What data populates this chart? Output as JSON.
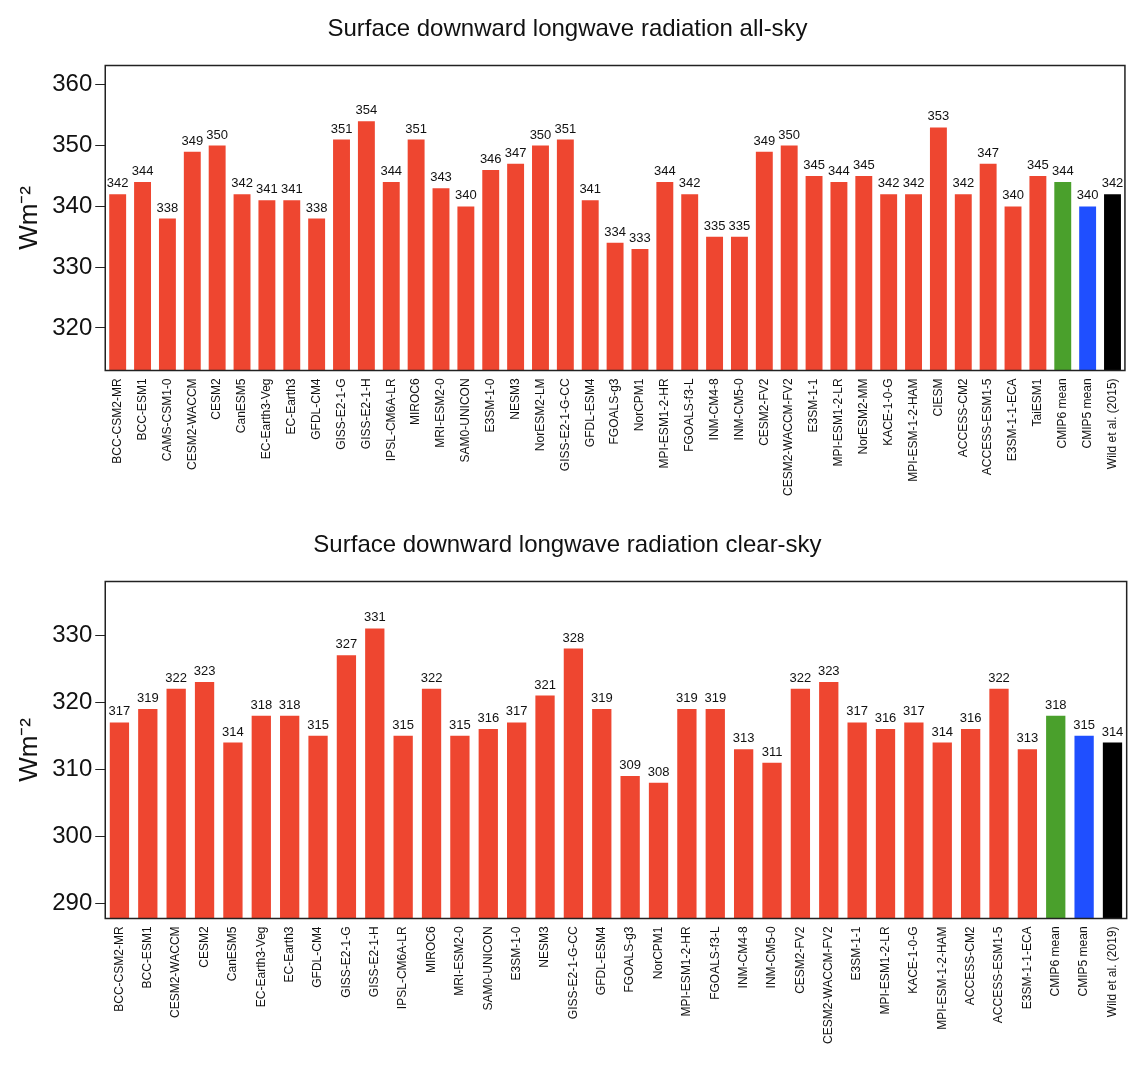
{
  "chart_data": [
    {
      "type": "bar",
      "title": "Surface downward longwave radiation all-sky",
      "ylabel": "Wm⁻²",
      "categories": [
        "BCC-CSM2-MR",
        "BCC-ESM1",
        "CAMS-CSM1-0",
        "CESM2-WACCM",
        "CESM2",
        "CanESM5",
        "EC-Earth3-Veg",
        "EC-Earth3",
        "GFDL-CM4",
        "GISS-E2-1-G",
        "GISS-E2-1-H",
        "IPSL-CM6A-LR",
        "MIROC6",
        "MRI-ESM2-0",
        "SAM0-UNICON",
        "E3SM-1-0",
        "NESM3",
        "NorESM2-LM",
        "GISS-E2-1-G-CC",
        "GFDL-ESM4",
        "FGOALS-g3",
        "NorCPM1",
        "MPI-ESM1-2-HR",
        "FGOALS-f3-L",
        "INM-CM4-8",
        "INM-CM5-0",
        "CESM2-FV2",
        "CESM2-WACCM-FV2",
        "E3SM-1-1",
        "MPI-ESM1-2-LR",
        "NorESM2-MM",
        "KACE-1-0-G",
        "MPI-ESM-1-2-HAM",
        "CIESM",
        "ACCESS-CM2",
        "ACCESS-ESM1-5",
        "E3SM-1-1-ECA",
        "TaiESM1",
        "CMIP6 mean",
        "CMIP5 mean",
        "Wild et al. (2015)"
      ],
      "values": [
        342,
        344,
        338,
        349,
        350,
        342,
        341,
        341,
        338,
        351,
        354,
        344,
        351,
        343,
        340,
        346,
        347,
        350,
        351,
        341,
        334,
        333,
        344,
        342,
        335,
        335,
        349,
        350,
        345,
        344,
        345,
        342,
        342,
        353,
        342,
        347,
        340,
        345,
        344,
        340,
        342
      ],
      "colors": [
        "#ee4630",
        "#ee4630",
        "#ee4630",
        "#ee4630",
        "#ee4630",
        "#ee4630",
        "#ee4630",
        "#ee4630",
        "#ee4630",
        "#ee4630",
        "#ee4630",
        "#ee4630",
        "#ee4630",
        "#ee4630",
        "#ee4630",
        "#ee4630",
        "#ee4630",
        "#ee4630",
        "#ee4630",
        "#ee4630",
        "#ee4630",
        "#ee4630",
        "#ee4630",
        "#ee4630",
        "#ee4630",
        "#ee4630",
        "#ee4630",
        "#ee4630",
        "#ee4630",
        "#ee4630",
        "#ee4630",
        "#ee4630",
        "#ee4630",
        "#ee4630",
        "#ee4630",
        "#ee4630",
        "#ee4630",
        "#ee4630",
        "#4aa02c",
        "#1f4fff",
        "#000000"
      ],
      "ylim": [
        313,
        363.2
      ],
      "yticks": [
        320,
        330,
        340,
        350,
        360
      ],
      "grid": false,
      "legend": false,
      "data_labels": true
    },
    {
      "type": "bar",
      "title": "Surface downward longwave radiation clear-sky",
      "ylabel": "Wm⁻²",
      "categories": [
        "BCC-CSM2-MR",
        "BCC-ESM1",
        "CESM2-WACCM",
        "CESM2",
        "CanESM5",
        "EC-Earth3-Veg",
        "EC-Earth3",
        "GFDL-CM4",
        "GISS-E2-1-G",
        "GISS-E2-1-H",
        "IPSL-CM6A-LR",
        "MIROC6",
        "MRI-ESM2-0",
        "SAM0-UNICON",
        "E3SM-1-0",
        "NESM3",
        "GISS-E2-1-G-CC",
        "GFDL-ESM4",
        "FGOALS-g3",
        "NorCPM1",
        "MPI-ESM1-2-HR",
        "FGOALS-f3-L",
        "INM-CM4-8",
        "INM-CM5-0",
        "CESM2-FV2",
        "CESM2-WACCM-FV2",
        "E3SM-1-1",
        "MPI-ESM1-2-LR",
        "KACE-1-0-G",
        "MPI-ESM-1-2-HAM",
        "ACCESS-CM2",
        "ACCESS-ESM1-5",
        "E3SM-1-1-ECA",
        "CMIP6 mean",
        "CMIP5 mean",
        "Wild et al. (2019)"
      ],
      "values": [
        317,
        319,
        322,
        323,
        314,
        318,
        318,
        315,
        327,
        331,
        315,
        322,
        315,
        316,
        317,
        321,
        328,
        319,
        309,
        308,
        319,
        319,
        313,
        311,
        322,
        323,
        317,
        316,
        317,
        314,
        316,
        322,
        313,
        318,
        315,
        314
      ],
      "colors": [
        "#ee4630",
        "#ee4630",
        "#ee4630",
        "#ee4630",
        "#ee4630",
        "#ee4630",
        "#ee4630",
        "#ee4630",
        "#ee4630",
        "#ee4630",
        "#ee4630",
        "#ee4630",
        "#ee4630",
        "#ee4630",
        "#ee4630",
        "#ee4630",
        "#ee4630",
        "#ee4630",
        "#ee4630",
        "#ee4630",
        "#ee4630",
        "#ee4630",
        "#ee4630",
        "#ee4630",
        "#ee4630",
        "#ee4630",
        "#ee4630",
        "#ee4630",
        "#ee4630",
        "#ee4630",
        "#ee4630",
        "#ee4630",
        "#ee4630",
        "#4aa02c",
        "#1f4fff",
        "#000000"
      ],
      "ylim": [
        287.8,
        338
      ],
      "yticks": [
        290,
        300,
        310,
        320,
        330
      ],
      "grid": false,
      "legend": false,
      "data_labels": true
    }
  ]
}
